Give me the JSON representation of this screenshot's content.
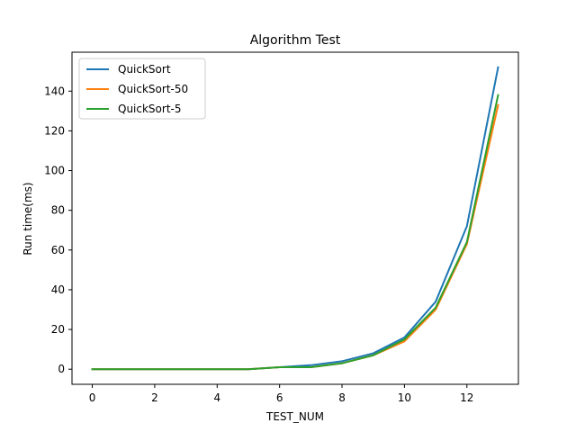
{
  "chart_data": {
    "type": "line",
    "title": "Algorithm Test",
    "xlabel": "TEST_NUM",
    "ylabel": "Run time(ms)",
    "x": [
      0,
      1,
      2,
      3,
      4,
      5,
      6,
      7,
      8,
      9,
      10,
      11,
      12,
      13
    ],
    "xlim": [
      -0.65,
      13.65
    ],
    "ylim": [
      -7.6,
      159.6
    ],
    "xticks": [
      0,
      2,
      4,
      6,
      8,
      10,
      12
    ],
    "yticks": [
      0,
      20,
      40,
      60,
      80,
      100,
      120,
      140
    ],
    "grid": false,
    "legend_position": "top-left",
    "series": [
      {
        "name": "QuickSort",
        "color": "#1f77b4",
        "values": [
          0,
          0,
          0,
          0,
          0,
          0,
          1,
          2,
          4,
          8,
          16,
          34,
          72,
          152
        ]
      },
      {
        "name": "QuickSort-50",
        "color": "#ff7f0e",
        "values": [
          0,
          0,
          0,
          0,
          0,
          0,
          1,
          1,
          3,
          7,
          14,
          30,
          63,
          133
        ]
      },
      {
        "name": "QuickSort-5",
        "color": "#2ca02c",
        "values": [
          0,
          0,
          0,
          0,
          0,
          0,
          1,
          1,
          3,
          7,
          15,
          31,
          64,
          138
        ]
      }
    ]
  }
}
